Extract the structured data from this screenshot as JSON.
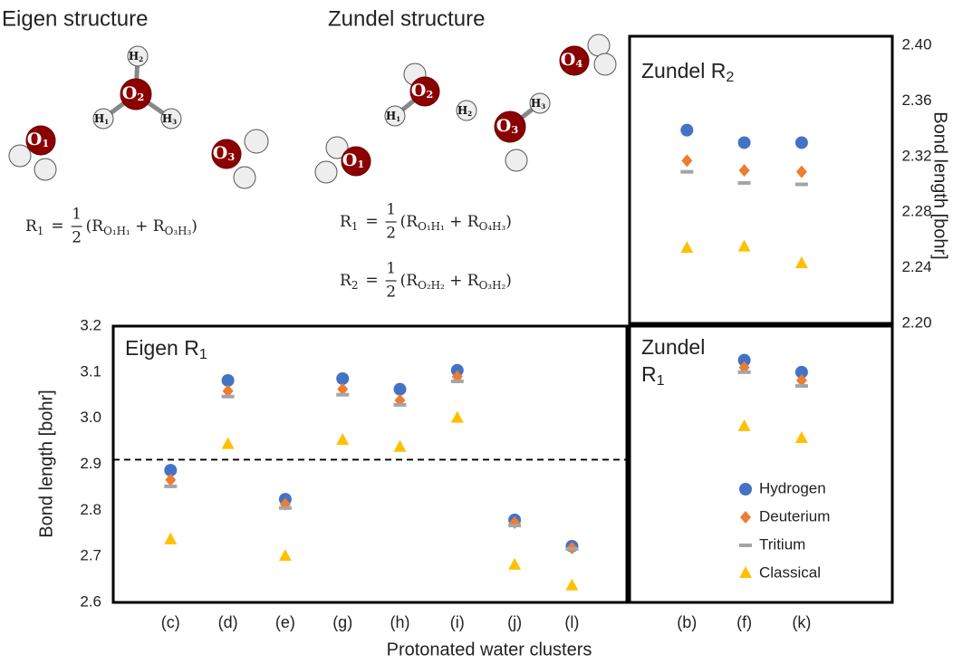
{
  "structures": [
    {
      "title": "Eigen structure",
      "atoms": [
        {
          "el": "O",
          "sub": "1"
        },
        {
          "el": "O",
          "sub": "2"
        },
        {
          "el": "H",
          "sub": "2"
        },
        {
          "el": "H",
          "sub": "1"
        },
        {
          "el": "H",
          "sub": "3"
        },
        {
          "el": "O",
          "sub": "3"
        }
      ],
      "equations": [
        {
          "lhs": [
            {
              "t": "R"
            },
            {
              "t": "1",
              "sub": true
            }
          ],
          "eq": "=",
          "num": "1",
          "den": "2",
          "rhs": [
            {
              "t": "(R"
            },
            {
              "t": "O₁H₁",
              "sub": true
            },
            {
              "t": " + R"
            },
            {
              "t": "O₃H₃",
              "sub": true
            },
            {
              "t": ")"
            }
          ]
        }
      ]
    },
    {
      "title": "Zundel structure",
      "atoms": [
        {
          "el": "O",
          "sub": "1"
        },
        {
          "el": "O",
          "sub": "2"
        },
        {
          "el": "H",
          "sub": "1"
        },
        {
          "el": "H",
          "sub": "2"
        },
        {
          "el": "O",
          "sub": "3"
        },
        {
          "el": "H",
          "sub": "3"
        },
        {
          "el": "O",
          "sub": "4"
        }
      ],
      "equations": [
        {
          "lhs": [
            {
              "t": "R"
            },
            {
              "t": "1",
              "sub": true
            }
          ],
          "eq": "=",
          "num": "1",
          "den": "2",
          "rhs": [
            {
              "t": "(R"
            },
            {
              "t": "O₁H₁",
              "sub": true
            },
            {
              "t": " + R"
            },
            {
              "t": "O₄H₃",
              "sub": true
            },
            {
              "t": ")"
            }
          ]
        },
        {
          "lhs": [
            {
              "t": "R"
            },
            {
              "t": "2",
              "sub": true
            }
          ],
          "eq": "=",
          "num": "1",
          "den": "2",
          "rhs": [
            {
              "t": "(R"
            },
            {
              "t": "O₂H₂",
              "sub": true
            },
            {
              "t": " + R"
            },
            {
              "t": "O₃H₂",
              "sub": true
            },
            {
              "t": ")"
            }
          ]
        }
      ]
    }
  ],
  "chart_data": [
    {
      "type": "scatter",
      "title": [
        {
          "t": "Eigen "
        },
        {
          "t": "R"
        },
        {
          "t": "1",
          "sub": true
        }
      ],
      "x_label": "Protonated water clusters",
      "y_label": "Bond length [bohr]",
      "categories": [
        "(c)",
        "(d)",
        "(e)",
        "(g)",
        "(h)",
        "(i)",
        "(j)",
        "(l)"
      ],
      "ylim": [
        2.6,
        3.2
      ],
      "yticks": [
        2.6,
        2.7,
        2.8,
        2.9,
        {
          "value": 3,
          "label": "3.0"
        },
        3.1,
        3.2
      ],
      "reference_line": 2.91,
      "series": [
        {
          "name": "Hydrogen",
          "color": "#4472c4",
          "marker": "circle",
          "values": [
            2.887,
            3.082,
            2.824,
            3.086,
            3.063,
            3.104,
            2.779,
            2.722
          ]
        },
        {
          "name": "Deuterium",
          "color": "#ed7d31",
          "marker": "diamond",
          "values": [
            2.866,
            3.059,
            2.813,
            3.063,
            3.039,
            3.09,
            2.773,
            2.718
          ]
        },
        {
          "name": "Tritium",
          "color": "#a5a5a5",
          "marker": "dash",
          "values": [
            2.852,
            3.047,
            2.805,
            3.051,
            3.029,
            3.08,
            2.767,
            2.716
          ]
        },
        {
          "name": "Classical",
          "color": "#ffc000",
          "marker": "triangle",
          "values": [
            2.736,
            2.943,
            2.7,
            2.952,
            2.937,
            3.0,
            2.681,
            2.636
          ]
        }
      ]
    },
    {
      "type": "scatter",
      "title": [
        {
          "t": "Zundel "
        },
        {
          "t": "R"
        },
        {
          "t": "2",
          "sub": true
        }
      ],
      "y_label": "Bond length [bohr]",
      "categories": [
        "(b)",
        "(f)",
        "(k)"
      ],
      "ylim": [
        2.2,
        2.4
      ],
      "yticks": [
        {
          "value": 2.2,
          "label": "2.20"
        },
        2.24,
        2.28,
        2.32,
        2.36,
        {
          "value": 2.4,
          "label": "2.40"
        }
      ],
      "series": [
        {
          "name": "Hydrogen",
          "color": "#4472c4",
          "marker": "circle",
          "values": [
            2.339,
            2.33,
            2.33
          ]
        },
        {
          "name": "Deuterium",
          "color": "#ed7d31",
          "marker": "diamond",
          "values": [
            2.317,
            2.31,
            2.309
          ]
        },
        {
          "name": "Tritium",
          "color": "#a5a5a5",
          "marker": "dash",
          "values": [
            2.309,
            2.301,
            2.3
          ]
        },
        {
          "name": "Classical",
          "color": "#ffc000",
          "marker": "triangle",
          "values": [
            2.254,
            2.255,
            2.243
          ]
        }
      ]
    },
    {
      "type": "scatter",
      "title": [
        {
          "t": "Zundel"
        },
        {
          "t": "R",
          "break": true
        },
        {
          "t": "1",
          "sub": true
        }
      ],
      "categories": [
        "(b)",
        "(f)",
        "(k)"
      ],
      "ylim": [
        2.6,
        3.2
      ],
      "legend": "lower right",
      "series": [
        {
          "name": "Hydrogen",
          "color": "#4472c4",
          "marker": "circle",
          "values": [
            null,
            3.126,
            3.1
          ]
        },
        {
          "name": "Deuterium",
          "color": "#ed7d31",
          "marker": "diamond",
          "values": [
            null,
            3.11,
            3.082
          ]
        },
        {
          "name": "Tritium",
          "color": "#a5a5a5",
          "marker": "dash",
          "values": [
            null,
            3.1,
            3.07
          ]
        },
        {
          "name": "Classical",
          "color": "#ffc000",
          "marker": "triangle",
          "values": [
            null,
            2.982,
            2.956
          ]
        }
      ]
    }
  ]
}
